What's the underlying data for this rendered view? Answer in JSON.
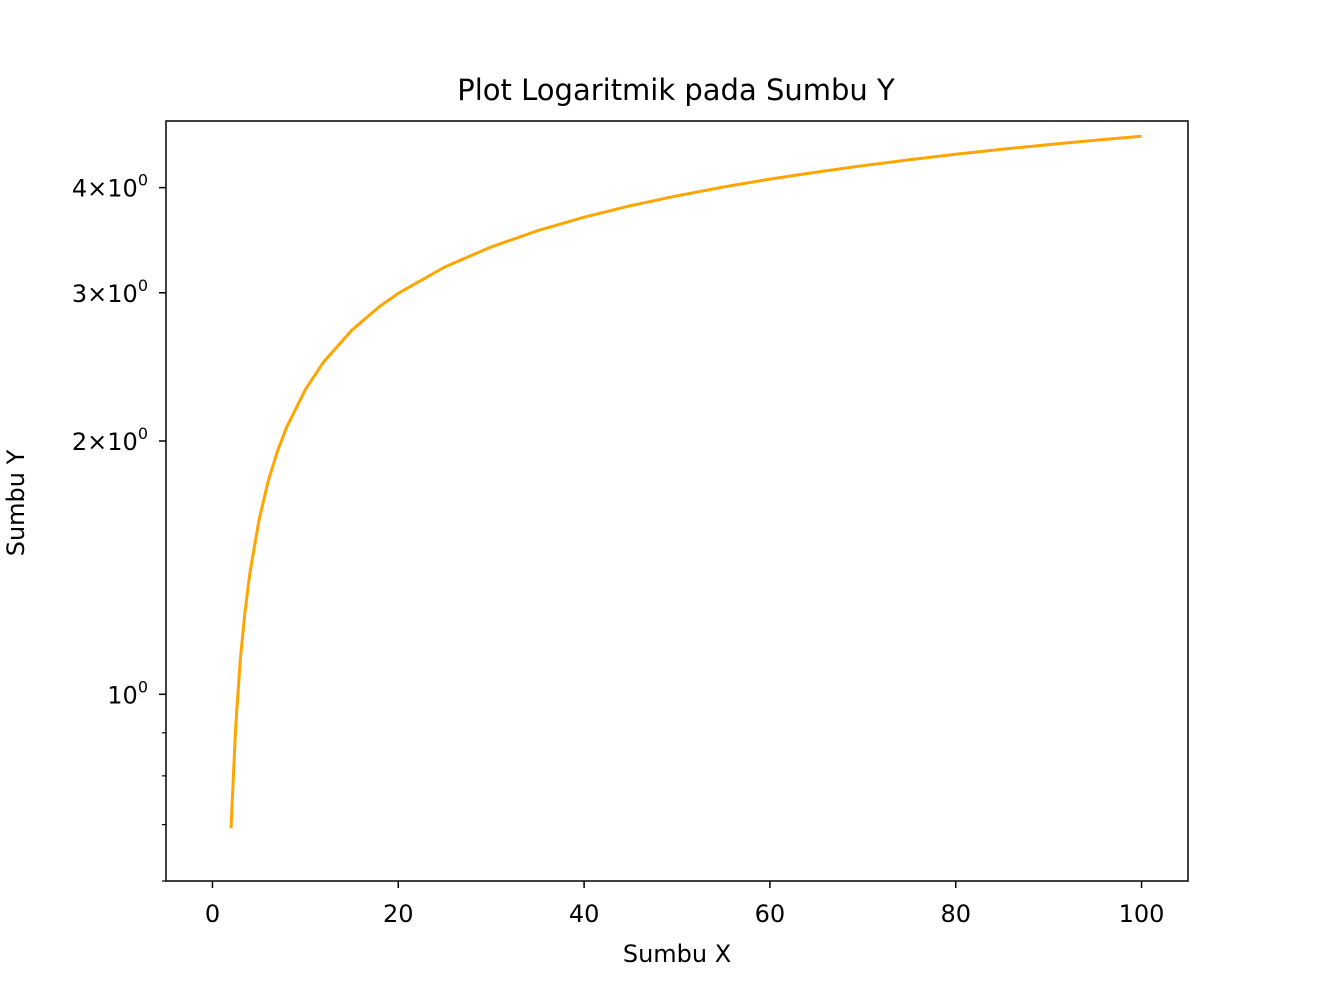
{
  "chart_data": {
    "type": "line",
    "title": "Plot Logaritmik pada Sumbu Y",
    "xlabel": "Sumbu X",
    "ylabel": "Sumbu Y",
    "xlim": [
      -5,
      105
    ],
    "ylim": [
      0.6,
      4.8
    ],
    "yscale": "log",
    "grid": false,
    "legend": "none",
    "x_ticks": [
      {
        "value": 0,
        "label": "0"
      },
      {
        "value": 20,
        "label": "20"
      },
      {
        "value": 40,
        "label": "40"
      },
      {
        "value": 60,
        "label": "60"
      },
      {
        "value": 80,
        "label": "80"
      },
      {
        "value": 100,
        "label": "100"
      }
    ],
    "y_ticks": [
      {
        "value": 1,
        "mantissa": "",
        "base": "10",
        "exp": "0"
      },
      {
        "value": 2,
        "mantissa": "2×",
        "base": "10",
        "exp": "0"
      },
      {
        "value": 3,
        "mantissa": "3×",
        "base": "10",
        "exp": "0"
      },
      {
        "value": 4,
        "mantissa": "4×",
        "base": "10",
        "exp": "0"
      }
    ],
    "y_minor_ticks": [
      0.6,
      0.7,
      0.8,
      0.9
    ],
    "series": [
      {
        "color": "#FFA500",
        "x": [
          2,
          2.5,
          3,
          3.5,
          4,
          5,
          6,
          7,
          8,
          10,
          12,
          15,
          18,
          20,
          25,
          30,
          35,
          40,
          45,
          50,
          55,
          60,
          65,
          70,
          75,
          80,
          85,
          90,
          95,
          100
        ],
        "y": [
          0.693,
          0.916,
          1.099,
          1.253,
          1.386,
          1.609,
          1.792,
          1.946,
          2.079,
          2.303,
          2.485,
          2.708,
          2.89,
          2.996,
          3.219,
          3.401,
          3.555,
          3.689,
          3.807,
          3.912,
          4.007,
          4.094,
          4.174,
          4.248,
          4.317,
          4.382,
          4.443,
          4.5,
          4.554,
          4.605
        ]
      }
    ]
  }
}
